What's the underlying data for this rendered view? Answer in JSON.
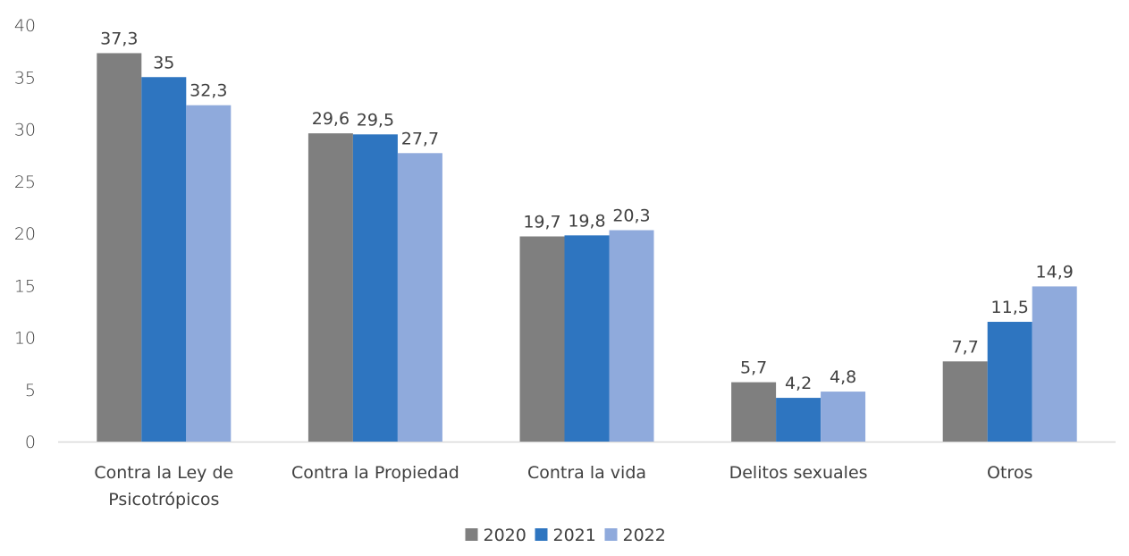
{
  "chart_data": {
    "type": "bar",
    "title": "",
    "xlabel": "",
    "ylabel": "",
    "ylim": [
      0,
      40
    ],
    "yticks": [
      0,
      5,
      10,
      15,
      20,
      25,
      30,
      35,
      40
    ],
    "grid": false,
    "legend_position": "bottom",
    "categories": [
      [
        "Contra la Ley de",
        "Psicotrópicos"
      ],
      [
        "Contra la Propiedad"
      ],
      [
        "Contra la vida"
      ],
      [
        "Delitos sexuales"
      ],
      [
        "Otros"
      ]
    ],
    "series": [
      {
        "name": "2020",
        "color": "#7f7f7f",
        "values": [
          37.3,
          29.6,
          19.7,
          5.7,
          7.7
        ],
        "labels": [
          "37,3",
          "29,6",
          "19,7",
          "5,7",
          "7,7"
        ]
      },
      {
        "name": "2021",
        "color": "#2e75c0",
        "values": [
          35,
          29.5,
          19.8,
          4.2,
          11.5
        ],
        "labels": [
          "35",
          "29,5",
          "19,8",
          "4,2",
          "11,5"
        ]
      },
      {
        "name": "2022",
        "color": "#8faadc",
        "values": [
          32.3,
          27.7,
          20.3,
          4.8,
          14.9
        ],
        "labels": [
          "32,3",
          "27,7",
          "20,3",
          "4,8",
          "14,9"
        ]
      }
    ]
  }
}
